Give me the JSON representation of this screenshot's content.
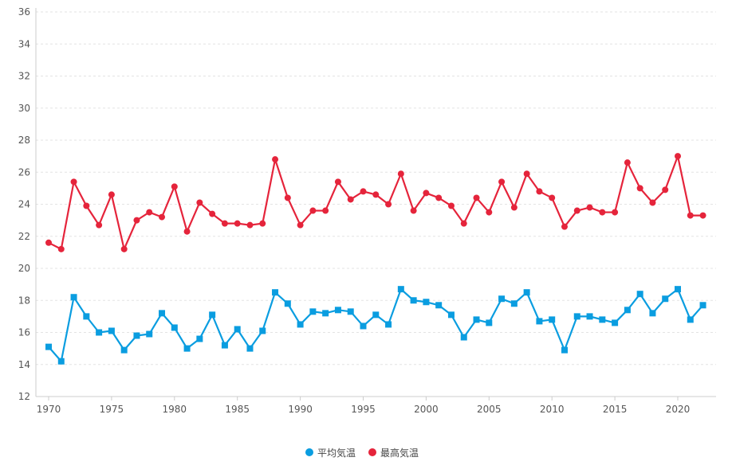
{
  "chart_data": {
    "type": "line",
    "title": "",
    "xlabel": "",
    "ylabel": "",
    "ylim": [
      12,
      36
    ],
    "yticks": [
      12,
      14,
      16,
      18,
      20,
      22,
      24,
      26,
      28,
      30,
      32,
      34,
      36
    ],
    "xticks": [
      1970,
      1975,
      1980,
      1985,
      1990,
      1995,
      2000,
      2005,
      2010,
      2015,
      2020
    ],
    "grid": true,
    "legend_position": "bottom",
    "x": [
      1970,
      1971,
      1972,
      1973,
      1974,
      1975,
      1976,
      1977,
      1978,
      1979,
      1980,
      1981,
      1982,
      1983,
      1984,
      1985,
      1986,
      1987,
      1988,
      1989,
      1990,
      1991,
      1992,
      1993,
      1994,
      1995,
      1996,
      1997,
      1998,
      1999,
      2000,
      2001,
      2002,
      2003,
      2004,
      2005,
      2006,
      2007,
      2008,
      2009,
      2010,
      2011,
      2012,
      2013,
      2014,
      2015,
      2016,
      2017,
      2018,
      2019,
      2020,
      2021,
      2022
    ],
    "series": [
      {
        "name": "平均気温",
        "color": "#0a9de0",
        "marker": "square",
        "values": [
          15.1,
          14.2,
          18.2,
          17.0,
          16.0,
          16.1,
          14.9,
          15.8,
          15.9,
          17.2,
          16.3,
          15.0,
          15.6,
          17.1,
          15.2,
          16.2,
          15.0,
          16.1,
          18.5,
          17.8,
          16.5,
          17.3,
          17.2,
          17.4,
          17.3,
          16.4,
          17.1,
          16.5,
          18.7,
          18.0,
          17.9,
          17.7,
          17.1,
          15.7,
          16.8,
          16.6,
          18.1,
          17.8,
          18.5,
          16.7,
          16.8,
          14.9,
          17.0,
          17.0,
          16.8,
          16.6,
          17.4,
          18.4,
          17.2,
          18.1,
          18.7,
          16.8,
          17.7
        ]
      },
      {
        "name": "最高気温",
        "color": "#e5243b",
        "marker": "circle",
        "values": [
          21.6,
          21.2,
          25.4,
          23.9,
          22.7,
          24.6,
          21.2,
          23.0,
          23.5,
          23.2,
          25.1,
          22.3,
          24.1,
          23.4,
          22.8,
          22.8,
          22.7,
          22.8,
          26.8,
          24.4,
          22.7,
          23.6,
          23.6,
          25.4,
          24.3,
          24.8,
          24.6,
          24.0,
          25.9,
          23.6,
          24.7,
          24.4,
          23.9,
          22.8,
          24.4,
          23.5,
          25.4,
          23.8,
          25.9,
          24.8,
          24.4,
          22.6,
          23.6,
          23.8,
          23.5,
          23.5,
          26.6,
          25.0,
          24.1,
          24.9,
          27.0,
          23.3,
          23.3
        ]
      }
    ]
  }
}
